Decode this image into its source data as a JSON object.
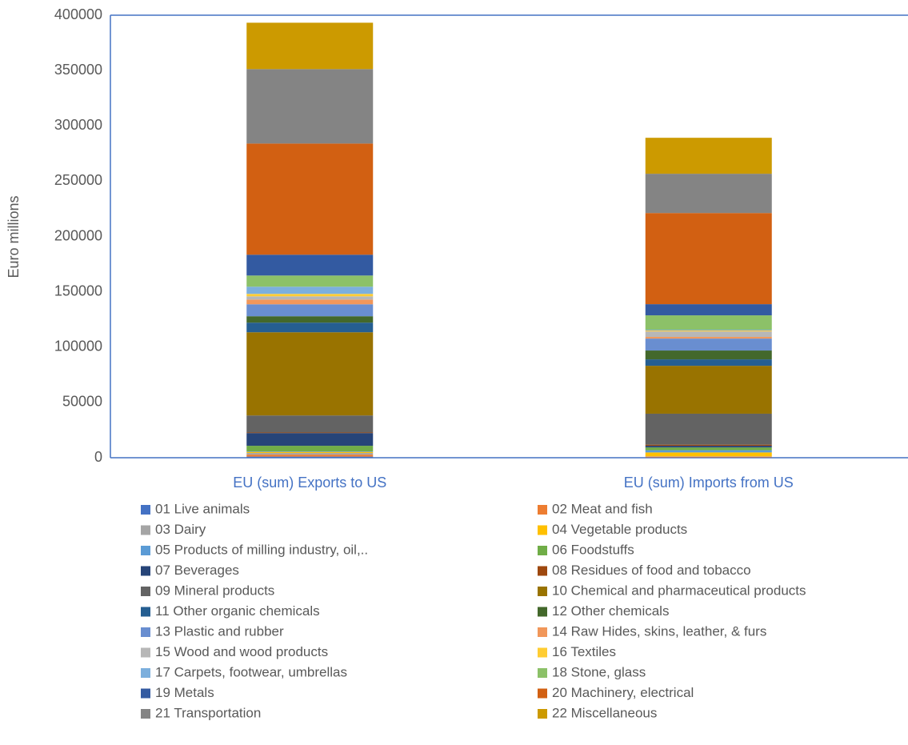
{
  "chart_data": {
    "type": "stacked_bar",
    "y_label": "Euro millions",
    "categories": [
      "EU (sum) Exports to US",
      "EU (sum) Imports from US"
    ],
    "ylim": [
      0,
      400000
    ],
    "yticks": [
      0,
      50000,
      100000,
      150000,
      200000,
      250000,
      300000,
      350000,
      400000
    ],
    "series": [
      {
        "name": "01 Live animals",
        "color": "#4472c4",
        "values": [
          1000,
          300
        ]
      },
      {
        "name": "02 Meat and fish",
        "color": "#ed7d31",
        "values": [
          1800,
          700
        ]
      },
      {
        "name": "03 Dairy",
        "color": "#a5a5a5",
        "values": [
          1500,
          300
        ]
      },
      {
        "name": "04 Vegetable products",
        "color": "#ffc000",
        "values": [
          1000,
          3500
        ]
      },
      {
        "name": "05 Products of milling industry, oil,..",
        "color": "#5b9bd5",
        "values": [
          500,
          2000
        ]
      },
      {
        "name": "06 Foodstuffs",
        "color": "#70ad47",
        "values": [
          5000,
          2500
        ]
      },
      {
        "name": "07 Beverages",
        "color": "#264478",
        "values": [
          11500,
          1500
        ]
      },
      {
        "name": "08 Residues of food and tobacco",
        "color": "#9e480e",
        "values": [
          500,
          1000
        ]
      },
      {
        "name": "09 Mineral products",
        "color": "#636363",
        "values": [
          15400,
          28000
        ]
      },
      {
        "name": "10 Chemical and pharmaceutical products",
        "color": "#997300",
        "values": [
          75200,
          43300
        ]
      },
      {
        "name": "11 Other organic chemicals",
        "color": "#255e91",
        "values": [
          8700,
          5800
        ]
      },
      {
        "name": "12 Other chemicals",
        "color": "#43682b",
        "values": [
          5800,
          8000
        ]
      },
      {
        "name": "13 Plastic and rubber",
        "color": "#698ed0",
        "values": [
          10800,
          10800
        ]
      },
      {
        "name": "14 Raw Hides, skins, leather, & furs",
        "color": "#f1975a",
        "values": [
          4300,
          1500
        ]
      },
      {
        "name": "15 Wood and wood products",
        "color": "#b7b7b7",
        "values": [
          2900,
          5000
        ]
      },
      {
        "name": "16 Textiles",
        "color": "#ffcd33",
        "values": [
          2200,
          800
        ]
      },
      {
        "name": "17 Carpets, footwear, umbrellas",
        "color": "#7cafdd",
        "values": [
          6500,
          700
        ]
      },
      {
        "name": "18 Stone, glass",
        "color": "#8cc168",
        "values": [
          10100,
          13000
        ]
      },
      {
        "name": "19 Metals",
        "color": "#335aa1",
        "values": [
          18800,
          10100
        ]
      },
      {
        "name": "20 Machinery, electrical",
        "color": "#d26012",
        "values": [
          100500,
          82400
        ]
      },
      {
        "name": "21 Transportation",
        "color": "#848484",
        "values": [
          67300,
          35500
        ]
      },
      {
        "name": "22 Miscellaneous",
        "color": "#cc9a00",
        "values": [
          41900,
          32500
        ]
      }
    ]
  }
}
